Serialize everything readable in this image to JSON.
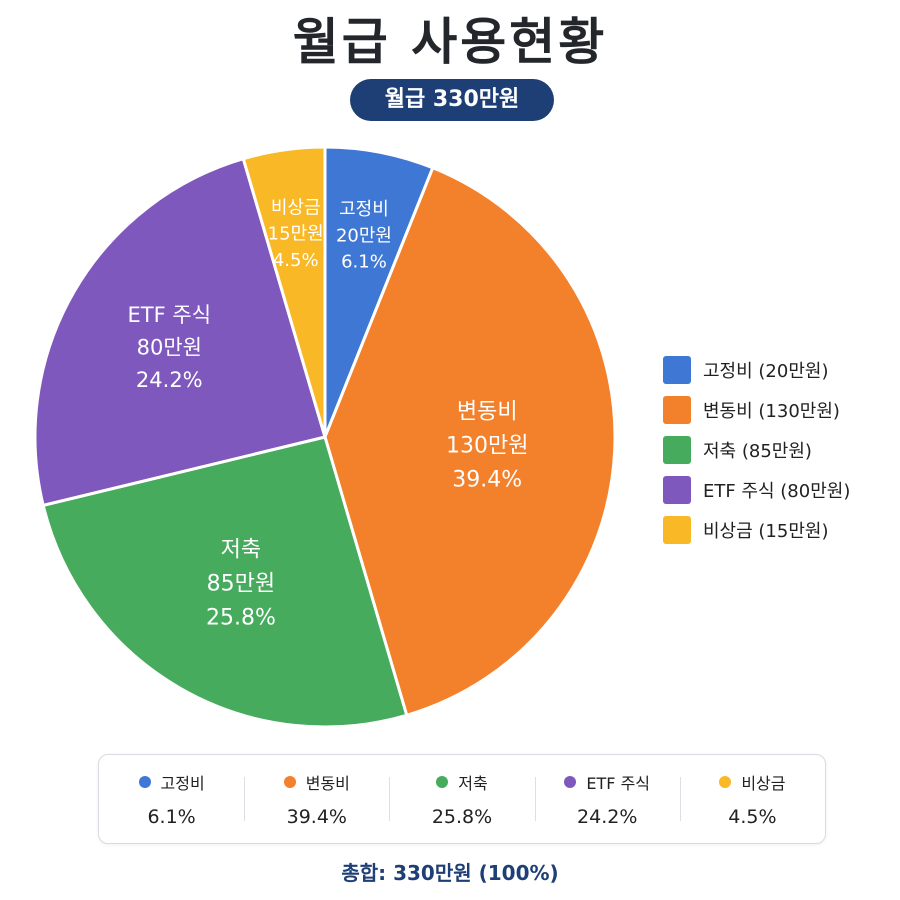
{
  "header": {
    "title": "월급 사용현황",
    "subtitle": "월급 330만원"
  },
  "colors": {
    "fixed": "#3f78d4",
    "variable": "#f3802a",
    "savings": "#46ab5c",
    "etf": "#7e58bd",
    "emergency": "#f9b826",
    "navy": "#1d3f75"
  },
  "chart_data": {
    "type": "pie",
    "title": "월급 사용현황",
    "subtitle": "월급 330만원",
    "total": 330,
    "slices": [
      {
        "label": "고정비",
        "value": 20,
        "percent": 6.1,
        "amount_text": "20만원",
        "percent_text": "6.1%",
        "color": "#3f78d4"
      },
      {
        "label": "변동비",
        "value": 130,
        "percent": 39.4,
        "amount_text": "130만원",
        "percent_text": "39.4%",
        "color": "#f3802a"
      },
      {
        "label": "저축",
        "value": 85,
        "percent": 25.8,
        "amount_text": "85만원",
        "percent_text": "25.8%",
        "color": "#46ab5c"
      },
      {
        "label": "ETF 주식",
        "value": 80,
        "percent": 24.2,
        "amount_text": "80만원",
        "percent_text": "24.2%",
        "color": "#7e58bd"
      },
      {
        "label": "비상금",
        "value": 15,
        "percent": 4.5,
        "amount_text": "15만원",
        "percent_text": "4.5%",
        "color": "#f9b826"
      }
    ],
    "legend_position": "right"
  },
  "legend": {
    "items": [
      {
        "text": "고정비 (20만원)"
      },
      {
        "text": "변동비 (130만원)"
      },
      {
        "text": "저축 (85만원)"
      },
      {
        "text": "ETF 주식 (80만원)"
      },
      {
        "text": "비상금 (15만원)"
      }
    ]
  },
  "summary": {
    "items": [
      {
        "label": "고정비",
        "percent": "6.1%"
      },
      {
        "label": "변동비",
        "percent": "39.4%"
      },
      {
        "label": "저축",
        "percent": "25.8%"
      },
      {
        "label": "ETF 주식",
        "percent": "24.2%"
      },
      {
        "label": "비상금",
        "percent": "4.5%"
      }
    ]
  },
  "footer": {
    "total_text": "총합: 330만원 (100%)"
  }
}
